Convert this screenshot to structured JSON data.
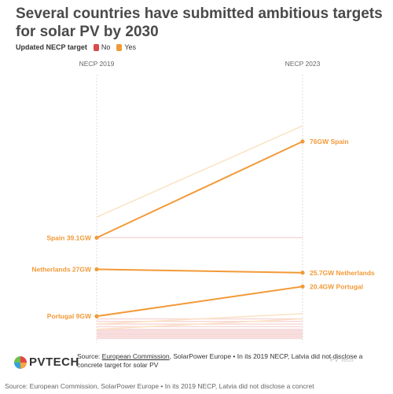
{
  "title": "Several countries have submitted ambitious targets for solar PV by 2030",
  "legend": {
    "label": "Updated NECP target",
    "items": [
      {
        "label": "No",
        "color": "#d94a4a"
      },
      {
        "label": "Yes",
        "color": "#f29a38"
      }
    ]
  },
  "colors": {
    "highlight": "#f29a38",
    "faded_yes": "#fbe2c3",
    "faded_no": "#f7d8d8",
    "axis": "#dddddd"
  },
  "chart_data": {
    "type": "line",
    "title": "Several countries have submitted ambitious targets for solar PV by 2030",
    "x": [
      "NECP 2019",
      "NECP 2023"
    ],
    "highlighted": [
      {
        "label_2019": "Spain 39.1GW",
        "label_2023": "76GW Spain",
        "values": [
          39.1,
          76
        ]
      },
      {
        "label_2019": "Netherlands 27GW",
        "label_2023": "25.7GW Netherlands",
        "values": [
          27,
          25.7
        ]
      },
      {
        "label_2019": "Portugal 9GW",
        "label_2023": "20.4GW Portugal",
        "values": [
          9,
          20.4
        ]
      }
    ],
    "background_yes": [
      {
        "values": [
          47,
          82
        ]
      },
      {
        "values": [
          6,
          10
        ]
      },
      {
        "values": [
          4,
          8
        ]
      }
    ],
    "background_no": [
      {
        "values": [
          39.1,
          39.1
        ]
      },
      {
        "values": [
          8,
          8
        ]
      },
      {
        "values": [
          7,
          7
        ]
      },
      {
        "values": [
          6,
          6
        ]
      },
      {
        "values": [
          5,
          5
        ]
      },
      {
        "values": [
          4,
          4
        ]
      },
      {
        "values": [
          3.5,
          3.5
        ]
      },
      {
        "values": [
          3,
          3
        ]
      },
      {
        "values": [
          2.5,
          2.5
        ]
      },
      {
        "values": [
          2,
          2
        ]
      },
      {
        "values": [
          1.5,
          1.5
        ]
      },
      {
        "values": [
          1,
          1
        ]
      },
      {
        "values": [
          0.5,
          0.5
        ]
      }
    ],
    "ylim": [
      0,
      82
    ]
  },
  "footer": {
    "source_prefix": "Source: ",
    "source_link": "European Commission",
    "source_rest": ", SolarPower Europe • In its 2019 NECP, Latvia did not disclose a concrete target for solar PV"
  },
  "logo": {
    "text": "PVTECH"
  },
  "watermark": "PV Tech",
  "caption": "Source: European Commission, SolarPower Europe • In its 2019 NECP, Latvia did not disclose a concret"
}
